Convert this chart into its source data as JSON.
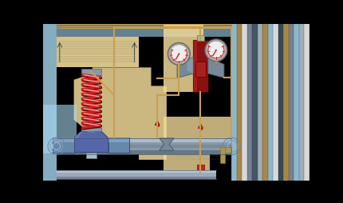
{
  "bg": "#000000",
  "fw": 4.31,
  "fh": 2.54,
  "dpi": 100,
  "tan": "#f0d898",
  "lt_blue": "#a8d8f0",
  "mid_blue": "#78b8e0",
  "tube": "#c8a050",
  "spring_red": "#cc2020",
  "spring_white": "#ffffff",
  "reg_dark": "#8b1010",
  "reg_mid": "#aa2020",
  "gauge_gray": "#c0c0c0",
  "gauge_dark": "#888888",
  "valve_blue": "#5566aa",
  "valve_light": "#8899cc",
  "pipe_gray": "#8899aa",
  "pipe_light": "#bbccdd",
  "pipe_dark": "#445566",
  "flange_blue": "#6688aa",
  "stem_gray": "#99aabc",
  "filter_gray": "#778899",
  "stripe_colors": [
    "#a8d8f0",
    "#c8a050",
    "#556677",
    "#8899aa",
    "#ffffff"
  ],
  "tan2": "#e8c878"
}
